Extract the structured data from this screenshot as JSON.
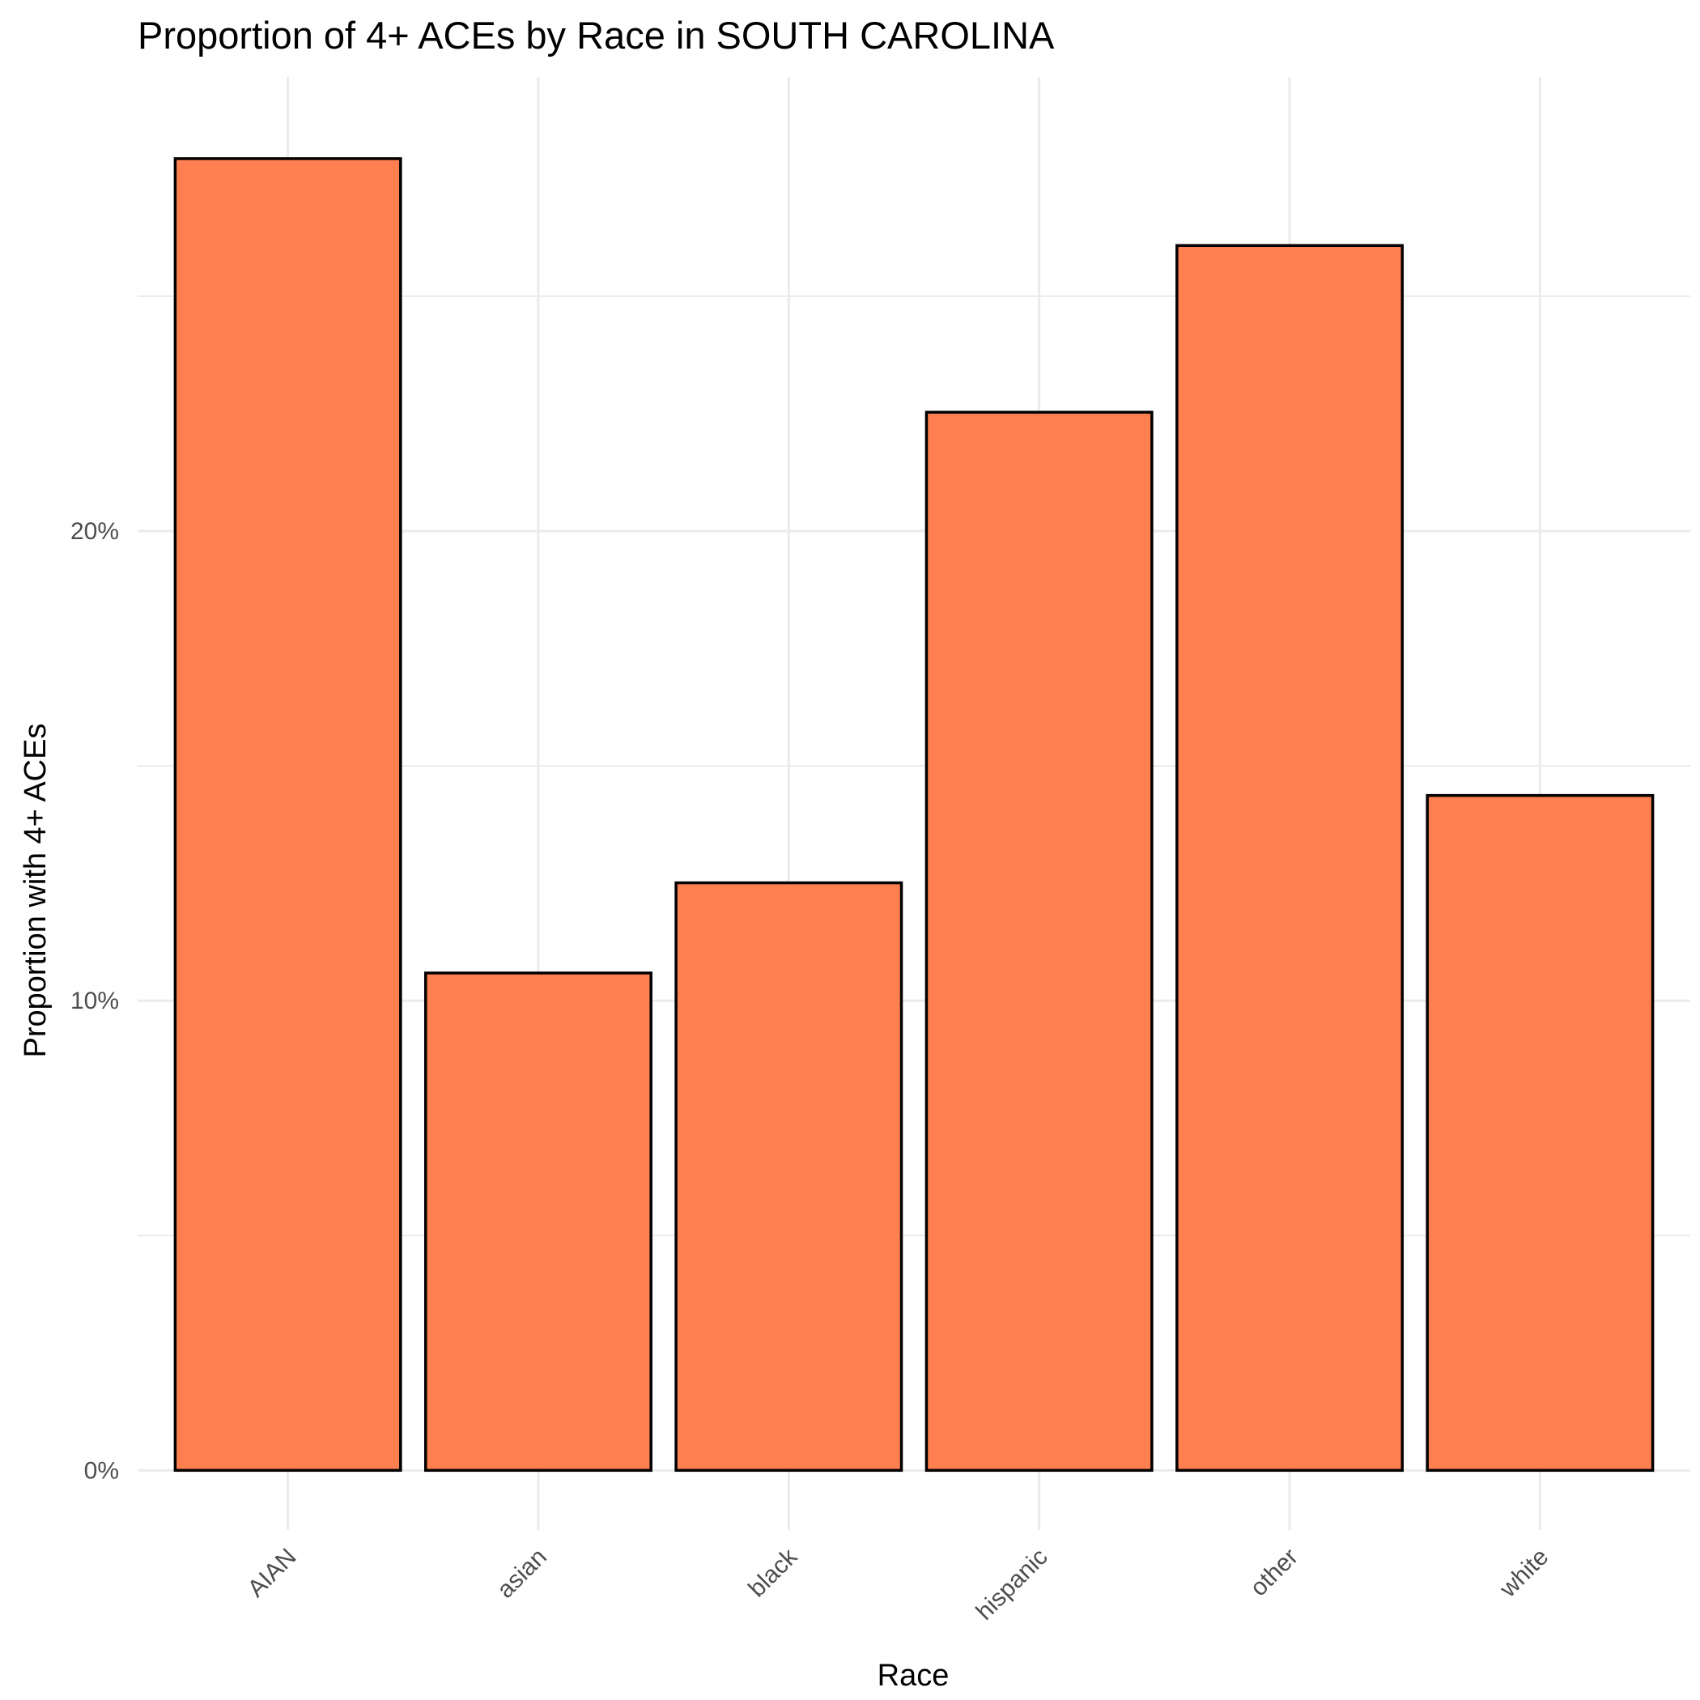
{
  "chart_data": {
    "type": "bar",
    "title": "Proportion of 4+ ACEs by Race in SOUTH CAROLINA",
    "xlabel": "Race",
    "ylabel": "Proportion with 4+ ACEs",
    "categories": [
      "AIAN",
      "asian",
      "black",
      "hispanic",
      "other",
      "white"
    ],
    "values": [
      0.2793,
      0.1059,
      0.1251,
      0.2253,
      0.2608,
      0.1437
    ],
    "yticks": [
      {
        "value": 0.0,
        "label": "0%"
      },
      {
        "value": 0.1,
        "label": "10%"
      },
      {
        "value": 0.2,
        "label": "20%"
      }
    ],
    "ylim": [
      -0.0127,
      0.2967
    ],
    "grid": true,
    "legend": "none",
    "bar_color": "#FF7F50",
    "bar_outline": "#000000"
  }
}
